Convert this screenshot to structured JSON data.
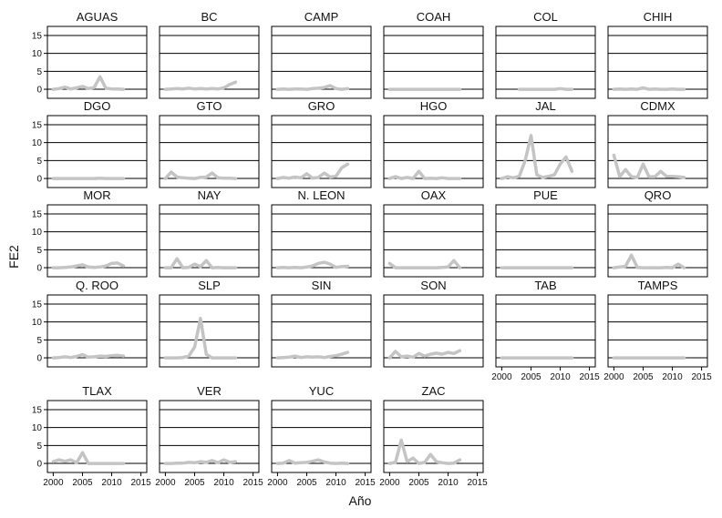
{
  "chart_data": {
    "type": "line",
    "ylabel": "FE2",
    "xlabel": "Año",
    "xlim": [
      1999,
      2016
    ],
    "ylim": [
      -1,
      16
    ],
    "x_ticks": [
      2000,
      2005,
      2010,
      2015
    ],
    "y_ticks": [
      0,
      5,
      10,
      15
    ],
    "grid": "horizontal",
    "line_color": "#c4c4c4",
    "panels": [
      {
        "name": "AGUAS",
        "x": [
          2000,
          2001,
          2002,
          2003,
          2004,
          2005,
          2006,
          2007,
          2008,
          2009,
          2010,
          2011,
          2012
        ],
        "values": [
          0,
          0.2,
          0.6,
          0.1,
          0.4,
          0.8,
          0.2,
          0.5,
          3.5,
          0.3,
          0.1,
          0.1,
          0
        ]
      },
      {
        "name": "BC",
        "x": [
          2000,
          2001,
          2002,
          2003,
          2004,
          2005,
          2006,
          2007,
          2008,
          2009,
          2010,
          2011,
          2012
        ],
        "values": [
          0,
          0.1,
          0.2,
          0.1,
          0.3,
          0.1,
          0.2,
          0.1,
          0.2,
          0.1,
          0.4,
          1.3,
          2
        ]
      },
      {
        "name": "CAMP",
        "x": [
          2000,
          2001,
          2002,
          2003,
          2004,
          2005,
          2006,
          2007,
          2008,
          2009,
          2010,
          2011,
          2012
        ],
        "values": [
          0,
          0.1,
          0,
          0.1,
          0.1,
          0,
          0.2,
          0.3,
          0.5,
          1,
          0.2,
          0,
          0.2
        ]
      },
      {
        "name": "COAH",
        "x": [
          2000,
          2001,
          2002,
          2003,
          2004,
          2005,
          2006,
          2007,
          2008,
          2009,
          2010,
          2011,
          2012
        ],
        "values": [
          0,
          0,
          0,
          0,
          0,
          0,
          0,
          0,
          0,
          0,
          0,
          0,
          0
        ]
      },
      {
        "name": "COL",
        "x": [
          2003,
          2004,
          2005,
          2006,
          2007,
          2008,
          2009,
          2010,
          2011,
          2012
        ],
        "values": [
          0,
          0,
          0,
          0,
          0,
          0,
          0,
          0.2,
          0,
          0
        ]
      },
      {
        "name": "CHIH",
        "x": [
          2000,
          2001,
          2002,
          2003,
          2004,
          2005,
          2006,
          2007,
          2008,
          2009,
          2010,
          2011,
          2012
        ],
        "values": [
          0,
          0.1,
          0,
          0.1,
          0,
          0.4,
          0,
          0.1,
          0,
          0,
          0.1,
          0,
          0
        ]
      },
      {
        "name": "DGO",
        "x": [
          2000,
          2001,
          2002,
          2003,
          2004,
          2005,
          2006,
          2007,
          2008,
          2009,
          2010,
          2011,
          2012
        ],
        "values": [
          0,
          0,
          0,
          0,
          0,
          0,
          0,
          0,
          0.1,
          0,
          0,
          0,
          0
        ]
      },
      {
        "name": "GTO",
        "x": [
          2000,
          2001,
          2002,
          2003,
          2004,
          2005,
          2006,
          2007,
          2008,
          2009,
          2010,
          2011,
          2012
        ],
        "values": [
          0,
          1.8,
          0.4,
          0.2,
          0.1,
          0,
          0.3,
          0.4,
          1.5,
          0.2,
          0.1,
          0.1,
          0
        ]
      },
      {
        "name": "GRO",
        "x": [
          2000,
          2001,
          2002,
          2003,
          2004,
          2005,
          2006,
          2007,
          2008,
          2009,
          2010,
          2011,
          2012
        ],
        "values": [
          0,
          0.3,
          0.1,
          0.4,
          0.2,
          1.3,
          0.1,
          0.3,
          1.5,
          0.4,
          0.6,
          3,
          4
        ]
      },
      {
        "name": "HGO",
        "x": [
          2000,
          2001,
          2002,
          2003,
          2004,
          2005,
          2006,
          2007,
          2008,
          2009,
          2010,
          2011,
          2012
        ],
        "values": [
          0,
          0.5,
          0,
          0.3,
          0,
          2,
          0,
          0.1,
          0,
          0.2,
          0,
          0,
          0
        ]
      },
      {
        "name": "JAL",
        "x": [
          2000,
          2001,
          2002,
          2003,
          2004,
          2005,
          2006,
          2007,
          2008,
          2009,
          2010,
          2011,
          2012
        ],
        "values": [
          0,
          0.5,
          0.2,
          0.6,
          5,
          12,
          1,
          0.3,
          0.6,
          1,
          4,
          6,
          2
        ]
      },
      {
        "name": "CDMX",
        "x": [
          2000,
          2001,
          2002,
          2003,
          2004,
          2005,
          2006,
          2007,
          2008,
          2009,
          2010,
          2011,
          2012
        ],
        "values": [
          6.5,
          0.5,
          2.5,
          0.5,
          0.3,
          4,
          0.5,
          0.5,
          2,
          0.6,
          0.6,
          0.5,
          0.3
        ]
      },
      {
        "name": "MOR",
        "x": [
          2000,
          2001,
          2002,
          2003,
          2004,
          2005,
          2006,
          2007,
          2008,
          2009,
          2010,
          2011,
          2012
        ],
        "values": [
          0,
          0,
          0.1,
          0.2,
          0.5,
          0.8,
          0.2,
          0.1,
          0.2,
          0.5,
          1.2,
          1.3,
          0.5
        ]
      },
      {
        "name": "NAY",
        "x": [
          2000,
          2001,
          2002,
          2003,
          2004,
          2005,
          2006,
          2007,
          2008,
          2009,
          2010,
          2011,
          2012
        ],
        "values": [
          0,
          0,
          2.5,
          0,
          0.1,
          1,
          0.3,
          2,
          0,
          0.1,
          0,
          0,
          0
        ]
      },
      {
        "name": "N. LEON",
        "x": [
          2000,
          2001,
          2002,
          2003,
          2004,
          2005,
          2006,
          2007,
          2008,
          2009,
          2010,
          2011,
          2012
        ],
        "values": [
          0,
          0.1,
          0,
          0.1,
          0,
          0.2,
          0.5,
          1.2,
          1.5,
          1,
          0.1,
          0.3,
          0.4
        ]
      },
      {
        "name": "OAX",
        "x": [
          2000,
          2001,
          2002,
          2003,
          2004,
          2005,
          2006,
          2007,
          2008,
          2009,
          2010,
          2011,
          2012
        ],
        "values": [
          1.2,
          0,
          0,
          0,
          0,
          0,
          0,
          0,
          0,
          0.1,
          0.2,
          2,
          0
        ]
      },
      {
        "name": "PUE",
        "x": [
          2000,
          2001,
          2002,
          2003,
          2004,
          2005,
          2006,
          2007,
          2008,
          2009,
          2010,
          2011,
          2012
        ],
        "values": [
          0,
          0,
          0,
          0,
          0,
          0,
          0,
          0,
          0,
          0,
          0,
          0,
          0
        ]
      },
      {
        "name": "QRO",
        "x": [
          2000,
          2001,
          2002,
          2003,
          2004,
          2005,
          2006,
          2007,
          2008,
          2009,
          2010,
          2011,
          2012
        ],
        "values": [
          0,
          0.2,
          0.4,
          3.5,
          0.1,
          0,
          0,
          0,
          0,
          0.1,
          0,
          1,
          0
        ]
      },
      {
        "name": "Q. ROO",
        "x": [
          2000,
          2001,
          2002,
          2003,
          2004,
          2005,
          2006,
          2007,
          2008,
          2009,
          2010,
          2011,
          2012
        ],
        "values": [
          0,
          0.1,
          0.3,
          0.1,
          0.4,
          0.9,
          0.2,
          0.3,
          0.5,
          0.4,
          0.6,
          0.7,
          0.5
        ]
      },
      {
        "name": "SLP",
        "x": [
          2000,
          2001,
          2002,
          2003,
          2004,
          2005,
          2006,
          2007,
          2008,
          2009,
          2010,
          2011,
          2012
        ],
        "values": [
          0,
          0,
          0,
          0.1,
          0.5,
          3,
          11,
          1,
          0,
          0,
          0,
          0,
          0
        ]
      },
      {
        "name": "SIN",
        "x": [
          2000,
          2001,
          2002,
          2003,
          2004,
          2005,
          2006,
          2007,
          2008,
          2009,
          2010,
          2011,
          2012
        ],
        "values": [
          0,
          0.1,
          0.2,
          0.5,
          0.1,
          0.3,
          0.2,
          0.3,
          0.1,
          0.4,
          0.6,
          1,
          1.5
        ]
      },
      {
        "name": "SON",
        "x": [
          2000,
          2001,
          2002,
          2003,
          2004,
          2005,
          2006,
          2007,
          2008,
          2009,
          2010,
          2011,
          2012
        ],
        "values": [
          0,
          1.8,
          0.3,
          0.5,
          0.2,
          1.2,
          0.5,
          1,
          1.3,
          1,
          1.5,
          1.2,
          2
        ]
      },
      {
        "name": "TAB",
        "x": [
          2000,
          2001,
          2002,
          2003,
          2004,
          2005,
          2006,
          2007,
          2008,
          2009,
          2010,
          2011,
          2012
        ],
        "values": [
          0,
          0,
          0,
          0,
          0,
          0,
          0,
          0,
          0,
          0,
          0,
          0,
          0
        ]
      },
      {
        "name": "TAMPS",
        "x": [
          2000,
          2001,
          2002,
          2003,
          2004,
          2005,
          2006,
          2007,
          2008,
          2009,
          2010,
          2011,
          2012
        ],
        "values": [
          0,
          0,
          0,
          0,
          0,
          0,
          0,
          0,
          0,
          0,
          0,
          0,
          0
        ]
      },
      {
        "name": "TLAX",
        "x": [
          2000,
          2001,
          2002,
          2003,
          2004,
          2005,
          2006,
          2007,
          2008,
          2009,
          2010,
          2011,
          2012
        ],
        "values": [
          0.5,
          1,
          0.6,
          1,
          0.2,
          3,
          0,
          0,
          0,
          0,
          0,
          0,
          0
        ]
      },
      {
        "name": "VER",
        "x": [
          2000,
          2001,
          2002,
          2003,
          2004,
          2005,
          2006,
          2007,
          2008,
          2009,
          2010,
          2011,
          2012
        ],
        "values": [
          0,
          0,
          0.1,
          0.1,
          0.3,
          0.2,
          0.5,
          0.3,
          0.8,
          0.2,
          1,
          0.3,
          0.5
        ]
      },
      {
        "name": "YUC",
        "x": [
          2000,
          2001,
          2002,
          2003,
          2004,
          2005,
          2006,
          2007,
          2008,
          2009,
          2010,
          2011,
          2012
        ],
        "values": [
          0,
          0.1,
          0.8,
          0.1,
          0.2,
          0.3,
          0.6,
          1,
          0.4,
          0.1,
          0,
          0.1,
          0
        ]
      },
      {
        "name": "ZAC",
        "x": [
          2000,
          2001,
          2002,
          2003,
          2004,
          2005,
          2006,
          2007,
          2008,
          2009,
          2010,
          2011,
          2012
        ],
        "values": [
          0,
          0.3,
          6.5,
          0.5,
          1.5,
          0,
          0.3,
          2.5,
          0.5,
          0.2,
          0,
          0.1,
          1
        ]
      }
    ]
  }
}
